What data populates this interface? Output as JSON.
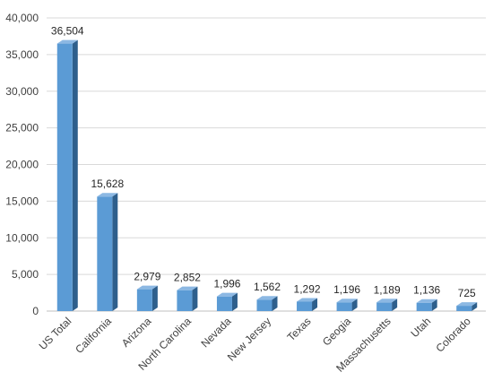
{
  "chart_data": {
    "type": "bar",
    "title": "",
    "xlabel": "",
    "ylabel": "",
    "categories": [
      "US Total",
      "California",
      "Arizona",
      "North Carolina",
      "Nevada",
      "New Jersey",
      "Texas",
      "Geogia",
      "Massachusetts",
      "Utah",
      "Colorado"
    ],
    "values": [
      36504,
      15628,
      2979,
      2852,
      1996,
      1562,
      1292,
      1196,
      1189,
      1136,
      725
    ],
    "data_labels": [
      "36,504",
      "15,628",
      "2,979",
      "2,852",
      "1,996",
      "1,562",
      "1,292",
      "1,196",
      "1,189",
      "1,136",
      "725"
    ],
    "ylim": [
      0,
      40000
    ],
    "yticks": [
      0,
      5000,
      10000,
      15000,
      20000,
      25000,
      30000,
      35000,
      40000
    ],
    "ytick_labels": [
      "0",
      "5,000",
      "10,000",
      "15,000",
      "20,000",
      "25,000",
      "30,000",
      "35,000",
      "40,000"
    ],
    "grid": true,
    "legend": "none",
    "colors": {
      "bar_front": "#5b9bd5",
      "bar_side": "#2e5f8c",
      "bar_top": "#8cb8e3",
      "grid": "#d9d9d9"
    }
  }
}
